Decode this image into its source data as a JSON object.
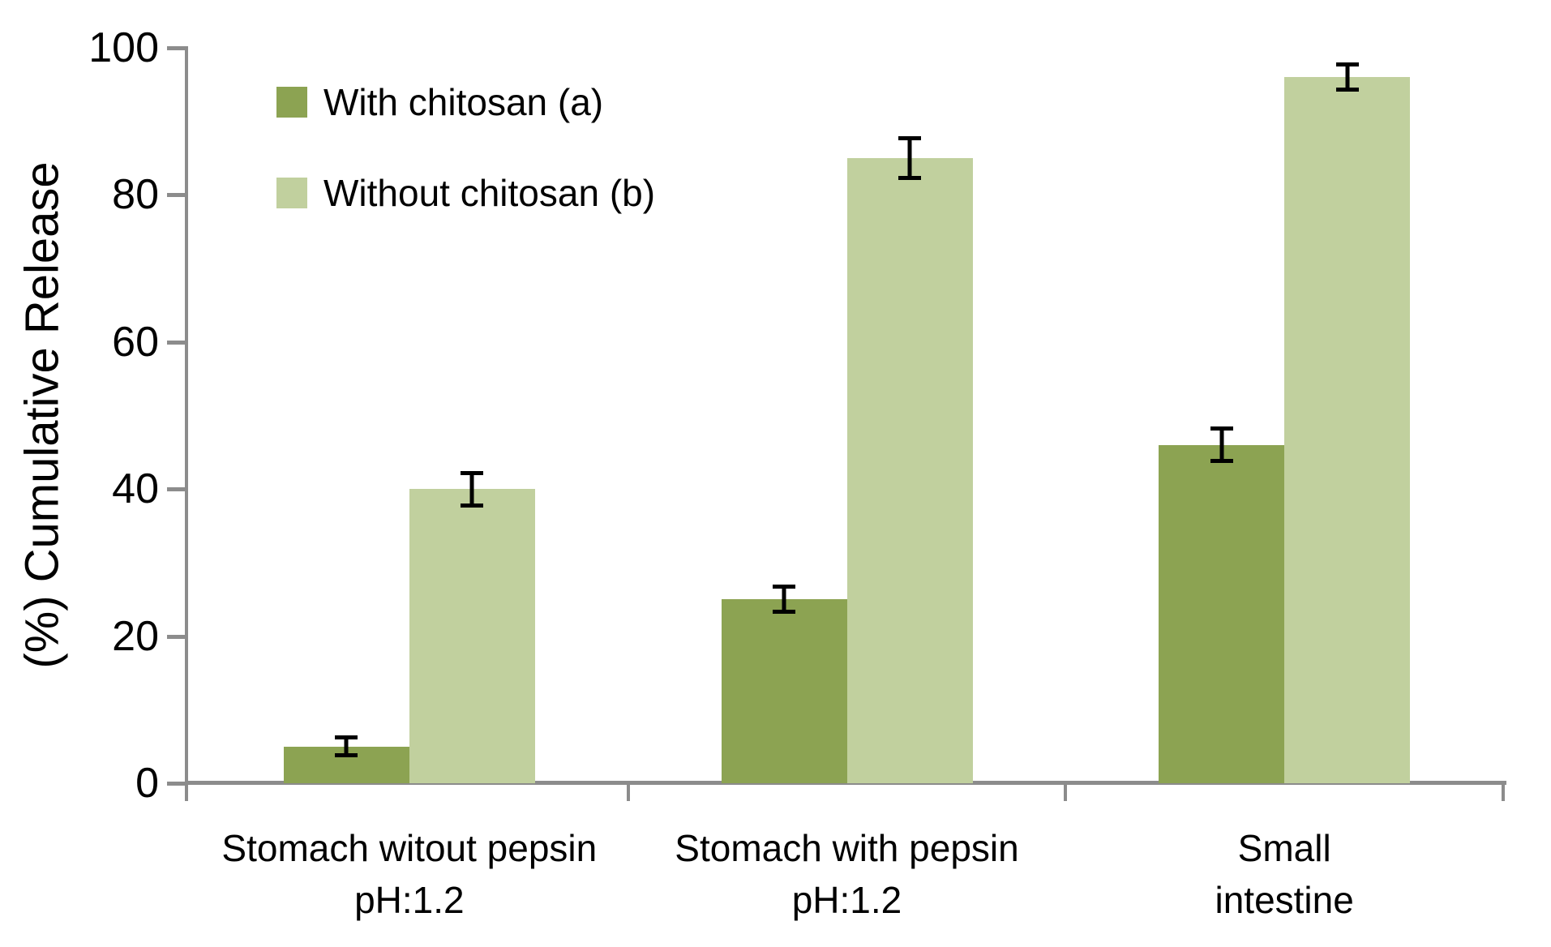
{
  "chart_data": {
    "type": "bar",
    "ylabel": "(%) Cumulative Release",
    "ylim": [
      0,
      100
    ],
    "y_ticks": [
      0,
      20,
      40,
      60,
      80,
      100
    ],
    "grid": false,
    "legend_position": "top-left",
    "axis_color": "#8C8C8C",
    "error_bar_color": "#000000",
    "categories": [
      [
        "Stomach witout pepsin",
        "pH:1.2"
      ],
      [
        "Stomach with pepsin",
        "pH:1.2"
      ],
      [
        "Small",
        "intestine"
      ]
    ],
    "series": [
      {
        "name": "With chitosan (a)",
        "color": "#8CA352",
        "values": [
          5,
          25,
          46
        ],
        "errors": [
          1.5,
          2,
          2.5
        ]
      },
      {
        "name": "Without chitosan (b)",
        "color": "#C1D09E",
        "values": [
          40,
          85,
          96
        ],
        "errors": [
          2.5,
          3,
          2
        ]
      }
    ]
  }
}
